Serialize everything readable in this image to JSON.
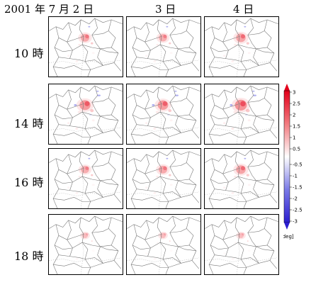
{
  "header": {
    "col1": "2001 年 7 月 2 日",
    "col2": "3 日",
    "col3": "4 日"
  },
  "rows": [
    "10 時",
    "14 時",
    "16 時",
    "18 時"
  ],
  "legend": {
    "ticks": [
      "3",
      "2.5",
      "2",
      "1.5",
      "1",
      "0.5",
      "-0.5",
      "-1",
      "-1.5",
      "-2",
      "-2.5",
      "-3"
    ],
    "unit": "[deg]",
    "colors": {
      "pos_max": "#e3001b",
      "pos_mid": "#f27a7f",
      "pos_min": "#fde3e4",
      "neg_min": "#e6e6fb",
      "neg_mid": "#7a7ae6",
      "neg_max": "#2b1ed0"
    }
  },
  "panels_intensity": [
    [
      0.6,
      0.55,
      0.7
    ],
    [
      0.85,
      0.8,
      0.95
    ],
    [
      0.55,
      0.6,
      0.7
    ],
    [
      0.3,
      0.3,
      0.3
    ]
  ]
}
